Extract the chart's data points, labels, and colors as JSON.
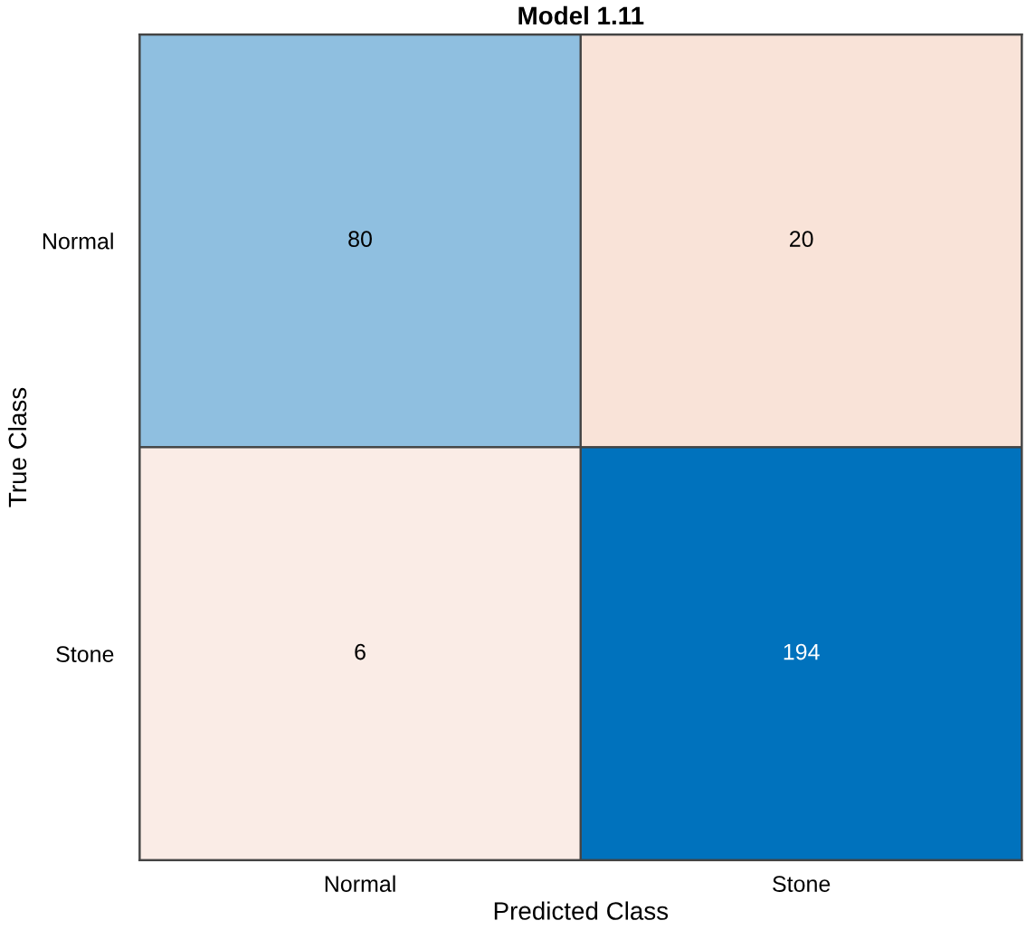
{
  "chart_data": {
    "type": "heatmap",
    "title": "Model 1.11",
    "xlabel": "Predicted Class",
    "ylabel": "True Class",
    "categories": [
      "Normal",
      "Stone"
    ],
    "y_categories": [
      "Normal",
      "Stone"
    ],
    "cells": [
      [
        80,
        20
      ],
      [
        6,
        194
      ]
    ],
    "colors": [
      [
        "#8fbfe0",
        "#f9e3d8"
      ],
      [
        "#faece6",
        "#0072bd"
      ]
    ],
    "data_labels": true,
    "grid": false
  }
}
